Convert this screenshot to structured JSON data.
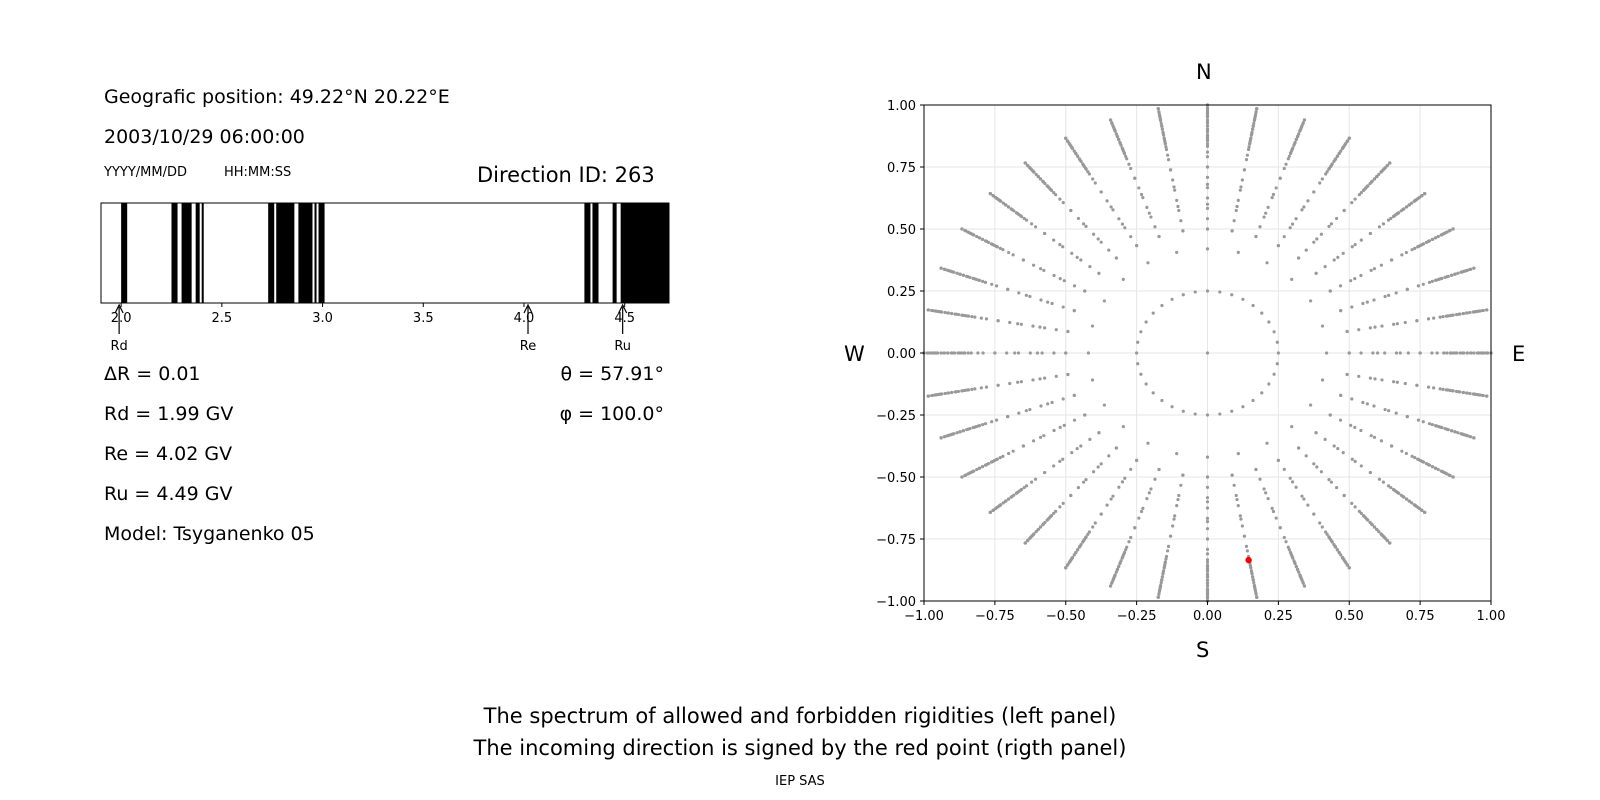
{
  "left_panel": {
    "position": "Geografic position: 49.22°N 20.22°E",
    "datetime": "2003/10/29 06:00:00",
    "date_format": "YYYY/MM/DD",
    "time_format": "HH:MM:SS",
    "direction": "Direction ID: 263",
    "delta_r": "ΔR = 0.01",
    "rd": "Rd = 1.99 GV",
    "re": "Re = 4.02 GV",
    "ru": "Ru = 4.49 GV",
    "model": "Model: Tsyganenko 05",
    "theta": "θ = 57.91°",
    "phi": "φ = 100.0°"
  },
  "chart_data": [
    {
      "type": "bar",
      "description_role": "rigidity spectrum",
      "x_range": [
        1.9,
        4.72
      ],
      "x_ticks": [
        "2.0",
        "2.5",
        "3.0",
        "3.5",
        "4.0",
        "4.5"
      ],
      "forbidden_intervals": [
        [
          2.0,
          2.03
        ],
        [
          2.25,
          2.28
        ],
        [
          2.3,
          2.35
        ],
        [
          2.37,
          2.39
        ],
        [
          2.4,
          2.41
        ],
        [
          2.73,
          2.76
        ],
        [
          2.77,
          2.86
        ],
        [
          2.88,
          2.95
        ],
        [
          2.96,
          2.97
        ],
        [
          2.98,
          3.01
        ],
        [
          4.3,
          4.33
        ],
        [
          4.34,
          4.37
        ],
        [
          4.44,
          4.46
        ],
        [
          4.48,
          4.72
        ]
      ],
      "markers": [
        {
          "label": "Rd",
          "value": 1.99
        },
        {
          "label": "Re",
          "value": 4.02
        },
        {
          "label": "Ru",
          "value": 4.49
        }
      ]
    },
    {
      "type": "scatter",
      "description_role": "direction map",
      "xlim": [
        -1.0,
        1.0
      ],
      "ylim": [
        -1.0,
        1.0
      ],
      "x_ticks": [
        "−1.00",
        "−0.75",
        "−0.50",
        "−0.25",
        "0.00",
        "0.25",
        "0.50",
        "0.75",
        "1.00"
      ],
      "y_ticks": [
        "1.00",
        "0.75",
        "0.50",
        "0.25",
        "0.00",
        "−0.25",
        "−0.50",
        "−0.75",
        "−1.00"
      ],
      "grid": true,
      "compass": {
        "north": "N",
        "south": "S",
        "west": "W",
        "east": "E"
      },
      "point_color": "#999999",
      "highlight_color": "#ff0000",
      "highlight_point": {
        "x": 0.145,
        "y": -0.835
      },
      "rings": [
        {
          "r": 0.25,
          "n": 36
        },
        {
          "r": 0.42,
          "n": 24
        },
        {
          "r": 0.5,
          "n": 36
        },
        {
          "r": 0.6,
          "n": 36
        },
        {
          "r": 0.68,
          "n": 36
        },
        {
          "r": 0.75,
          "n": 36
        },
        {
          "r": 0.81,
          "n": 36
        },
        {
          "r": 0.86,
          "n": 36
        },
        {
          "r": 0.9,
          "n": 36
        },
        {
          "r": 0.93,
          "n": 36
        },
        {
          "r": 0.955,
          "n": 36
        },
        {
          "r": 0.97,
          "n": 36
        },
        {
          "r": 0.985,
          "n": 36
        },
        {
          "r": 1.0,
          "n": 36
        }
      ],
      "extra_radial": {
        "n": 36,
        "r_min": 0.5,
        "r_max": 1.0,
        "steps": 12
      }
    }
  ],
  "caption": {
    "line1": "The spectrum of allowed and forbidden rigidities (left panel)",
    "line2": "The incoming direction is signed by the red point (rigth panel)",
    "credit": "IEP SAS"
  }
}
